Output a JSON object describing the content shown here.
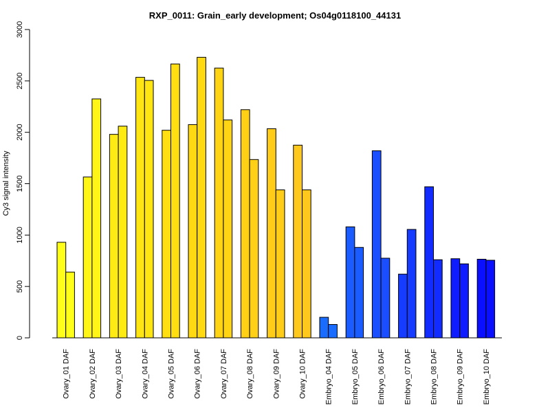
{
  "chart_data": {
    "type": "bar",
    "title": "RXP_0011: Grain_early development; Os04g0118100_44131",
    "xlabel": "",
    "ylabel": "Cy3 signal intensity",
    "ylim": [
      0,
      3000
    ],
    "yticks": [
      0,
      500,
      1000,
      1500,
      2000,
      2500,
      3000
    ],
    "categories": [
      "Ovary_01 DAF",
      "Ovary_02 DAF",
      "Ovary_03 DAF",
      "Ovary_04 DAF",
      "Ovary_05 DAF",
      "Ovary_06 DAF",
      "Ovary_07 DAF",
      "Ovary_08 DAF",
      "Ovary_09 DAF",
      "Ovary_10 DAF",
      "Embryo_04 DAF",
      "Embryo_05 DAF",
      "Embryo_06 DAF",
      "Embryo_07 DAF",
      "Embryo_08 DAF",
      "Embryo_09 DAF",
      "Embryo_10 DAF"
    ],
    "series": [
      {
        "values": [
          930,
          1565,
          1980,
          2535,
          2020,
          2075,
          2625,
          2220,
          2035,
          1875,
          200,
          1080,
          1820,
          620,
          1470,
          770,
          765
        ]
      },
      {
        "values": [
          640,
          2325,
          2060,
          2505,
          2665,
          2730,
          2120,
          1735,
          1440,
          1440,
          130,
          880,
          775,
          1055,
          760,
          720,
          755
        ]
      }
    ],
    "category_colors": [
      "#FFFF1A",
      "#FFF516",
      "#FFEB14",
      "#FFE512",
      "#FFDE12",
      "#FFD912",
      "#FFD414",
      "#FFD016",
      "#FFCC18",
      "#FFC81C",
      "#1A6CFF",
      "#1A5CFF",
      "#1A4EFF",
      "#163CFF",
      "#122CFF",
      "#0E1CFF",
      "#0A10FF"
    ],
    "grid": false,
    "legend": "none"
  }
}
